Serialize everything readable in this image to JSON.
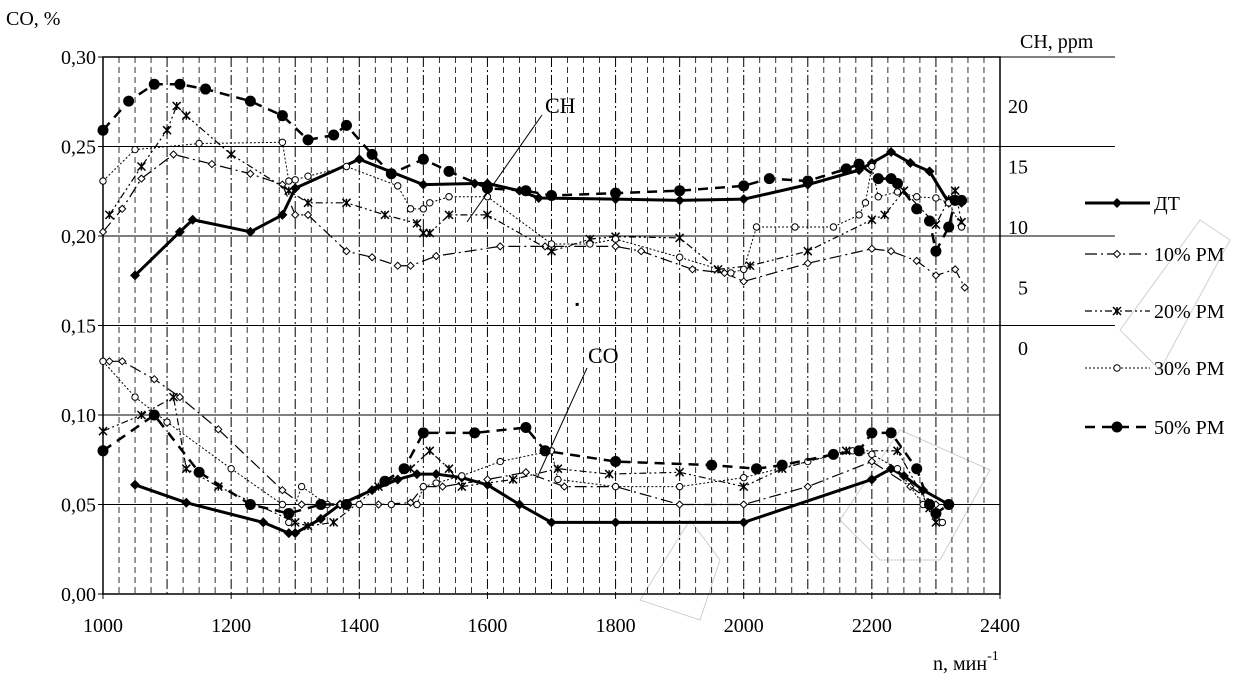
{
  "chart_data": {
    "type": "line",
    "y_label_left": "CO, %",
    "y_label_right": "CH, ppm",
    "x_label": "n, мин",
    "x_label_superscript": "-1",
    "xlim": [
      1000,
      2400
    ],
    "ylim_left": [
      0,
      0.3
    ],
    "ylim_right": [
      0,
      25
    ],
    "x_ticks": [
      "1000",
      "1200",
      "1400",
      "1600",
      "1800",
      "2000",
      "2200",
      "2400"
    ],
    "y_ticks_left": [
      "0,00",
      "0,05",
      "0,10",
      "0,15",
      "0,20",
      "0,25",
      "0,30"
    ],
    "y_ticks_right": [
      "0",
      "5",
      "10",
      "15",
      "20"
    ],
    "annotations": {
      "ch": "CH",
      "co": "CO"
    },
    "grid": "vertical lines every 25 rpm, horizontal lines at left-axis ticks",
    "legend_position": "right",
    "legend": [
      {
        "name": "ДТ",
        "style": "solid-thick",
        "marker": "diamond"
      },
      {
        "name": "10% РМ",
        "style": "long-dash-dot",
        "marker": "open-diamond"
      },
      {
        "name": "20% РМ",
        "style": "dash-dot-dot",
        "marker": "star"
      },
      {
        "name": "30% РМ",
        "style": "dotted-thin",
        "marker": "open-circle"
      },
      {
        "name": "50% РМ",
        "style": "heavy-dash",
        "marker": "filled-circle"
      }
    ],
    "series": [
      {
        "name": "ДТ",
        "measure": "CO",
        "axis": "left",
        "points": [
          [
            1050,
            0.061
          ],
          [
            1130,
            0.051
          ],
          [
            1250,
            0.04
          ],
          [
            1290,
            0.034
          ],
          [
            1300,
            0.034
          ],
          [
            1340,
            0.042
          ],
          [
            1370,
            0.05
          ],
          [
            1420,
            0.058
          ],
          [
            1460,
            0.064
          ],
          [
            1490,
            0.067
          ],
          [
            1520,
            0.067
          ],
          [
            1560,
            0.065
          ],
          [
            1600,
            0.061
          ],
          [
            1650,
            0.05
          ],
          [
            1700,
            0.04
          ],
          [
            1800,
            0.04
          ],
          [
            2000,
            0.04
          ],
          [
            2200,
            0.064
          ],
          [
            2230,
            0.07
          ],
          [
            2250,
            0.066
          ],
          [
            2280,
            0.058
          ],
          [
            2320,
            0.05
          ]
        ]
      },
      {
        "name": "ДТ",
        "measure": "CH",
        "axis": "right",
        "points": [
          [
            1050,
            6.0
          ],
          [
            1120,
            9.6
          ],
          [
            1140,
            10.6
          ],
          [
            1230,
            9.6
          ],
          [
            1280,
            11.0
          ],
          [
            1300,
            13.2
          ],
          [
            1400,
            15.6
          ],
          [
            1500,
            13.5
          ],
          [
            1580,
            13.6
          ],
          [
            1600,
            13.6
          ],
          [
            1650,
            13.0
          ],
          [
            1680,
            12.4
          ],
          [
            1800,
            12.3
          ],
          [
            1900,
            12.2
          ],
          [
            2000,
            12.3
          ],
          [
            2100,
            13.5
          ],
          [
            2180,
            14.7
          ],
          [
            2200,
            15.3
          ],
          [
            2230,
            16.2
          ],
          [
            2260,
            15.3
          ],
          [
            2290,
            14.6
          ],
          [
            2320,
            12.0
          ],
          [
            2340,
            12.0
          ]
        ]
      },
      {
        "name": "10% РМ",
        "measure": "CO",
        "axis": "left",
        "points": [
          [
            1010,
            0.13
          ],
          [
            1030,
            0.13
          ],
          [
            1080,
            0.12
          ],
          [
            1120,
            0.11
          ],
          [
            1180,
            0.092
          ],
          [
            1280,
            0.058
          ],
          [
            1310,
            0.05
          ],
          [
            1370,
            0.05
          ],
          [
            1430,
            0.05
          ],
          [
            1480,
            0.051
          ],
          [
            1500,
            0.06
          ],
          [
            1530,
            0.06
          ],
          [
            1600,
            0.064
          ],
          [
            1660,
            0.068
          ],
          [
            1720,
            0.06
          ],
          [
            1800,
            0.06
          ],
          [
            1900,
            0.05
          ],
          [
            2000,
            0.05
          ],
          [
            2100,
            0.06
          ],
          [
            2200,
            0.074
          ],
          [
            2260,
            0.06
          ],
          [
            2300,
            0.05
          ]
        ]
      },
      {
        "name": "10% РМ",
        "measure": "CH",
        "axis": "right",
        "points": [
          [
            1000,
            9.6
          ],
          [
            1030,
            11.5
          ],
          [
            1060,
            14.0
          ],
          [
            1110,
            16.0
          ],
          [
            1170,
            15.2
          ],
          [
            1230,
            14.4
          ],
          [
            1280,
            13.5
          ],
          [
            1300,
            11.0
          ],
          [
            1320,
            11.0
          ],
          [
            1380,
            8.0
          ],
          [
            1420,
            7.5
          ],
          [
            1460,
            6.8
          ],
          [
            1480,
            6.8
          ],
          [
            1520,
            7.6
          ],
          [
            1620,
            8.4
          ],
          [
            1690,
            8.4
          ],
          [
            1800,
            8.4
          ],
          [
            1840,
            8.0
          ],
          [
            1920,
            6.5
          ],
          [
            1970,
            6.2
          ],
          [
            2000,
            5.5
          ],
          [
            2100,
            7.0
          ],
          [
            2200,
            8.2
          ],
          [
            2230,
            8.0
          ],
          [
            2270,
            7.2
          ],
          [
            2300,
            6.0
          ],
          [
            2330,
            6.5
          ],
          [
            2345,
            5.0
          ]
        ]
      },
      {
        "name": "20% РМ",
        "measure": "CO",
        "axis": "left",
        "points": [
          [
            1000,
            0.091
          ],
          [
            1060,
            0.1
          ],
          [
            1110,
            0.11
          ],
          [
            1130,
            0.07
          ],
          [
            1180,
            0.06
          ],
          [
            1300,
            0.04
          ],
          [
            1320,
            0.038
          ],
          [
            1360,
            0.04
          ],
          [
            1430,
            0.06
          ],
          [
            1480,
            0.07
          ],
          [
            1510,
            0.08
          ],
          [
            1540,
            0.07
          ],
          [
            1560,
            0.06
          ],
          [
            1640,
            0.064
          ],
          [
            1710,
            0.07
          ],
          [
            1790,
            0.067
          ],
          [
            1900,
            0.068
          ],
          [
            2000,
            0.06
          ],
          [
            2060,
            0.07
          ],
          [
            2160,
            0.08
          ],
          [
            2240,
            0.08
          ],
          [
            2290,
            0.048
          ],
          [
            2300,
            0.04
          ]
        ]
      },
      {
        "name": "20% РМ",
        "measure": "CH",
        "axis": "right",
        "points": [
          [
            1010,
            11.0
          ],
          [
            1060,
            15.0
          ],
          [
            1100,
            18.0
          ],
          [
            1115,
            20.0
          ],
          [
            1130,
            19.2
          ],
          [
            1200,
            16.0
          ],
          [
            1290,
            13.0
          ],
          [
            1320,
            12.0
          ],
          [
            1380,
            12.0
          ],
          [
            1440,
            11.0
          ],
          [
            1490,
            10.3
          ],
          [
            1500,
            9.5
          ],
          [
            1510,
            9.5
          ],
          [
            1540,
            11.0
          ],
          [
            1600,
            11.0
          ],
          [
            1700,
            8.0
          ],
          [
            1760,
            9.0
          ],
          [
            1800,
            9.2
          ],
          [
            1900,
            9.1
          ],
          [
            1960,
            6.5
          ],
          [
            2010,
            6.8
          ],
          [
            2100,
            8.0
          ],
          [
            2200,
            10.6
          ],
          [
            2220,
            11.0
          ],
          [
            2250,
            13.0
          ],
          [
            2300,
            10.2
          ],
          [
            2320,
            12.3
          ],
          [
            2330,
            13.0
          ],
          [
            2340,
            10.4
          ]
        ]
      },
      {
        "name": "30% РМ",
        "measure": "CO",
        "axis": "left",
        "points": [
          [
            1000,
            0.13
          ],
          [
            1050,
            0.11
          ],
          [
            1100,
            0.096
          ],
          [
            1200,
            0.07
          ],
          [
            1280,
            0.05
          ],
          [
            1290,
            0.04
          ],
          [
            1310,
            0.06
          ],
          [
            1350,
            0.05
          ],
          [
            1400,
            0.05
          ],
          [
            1450,
            0.05
          ],
          [
            1490,
            0.05
          ],
          [
            1500,
            0.06
          ],
          [
            1520,
            0.062
          ],
          [
            1560,
            0.066
          ],
          [
            1620,
            0.074
          ],
          [
            1700,
            0.08
          ],
          [
            1710,
            0.064
          ],
          [
            1800,
            0.06
          ],
          [
            1900,
            0.06
          ],
          [
            2000,
            0.065
          ],
          [
            2100,
            0.074
          ],
          [
            2170,
            0.08
          ],
          [
            2200,
            0.078
          ],
          [
            2240,
            0.07
          ],
          [
            2280,
            0.05
          ],
          [
            2310,
            0.04
          ]
        ]
      },
      {
        "name": "30% РМ",
        "measure": "CH",
        "axis": "right",
        "points": [
          [
            1000,
            13.8
          ],
          [
            1050,
            16.4
          ],
          [
            1150,
            16.9
          ],
          [
            1280,
            17.0
          ],
          [
            1290,
            13.8
          ],
          [
            1300,
            13.9
          ],
          [
            1320,
            14.2
          ],
          [
            1380,
            15.0
          ],
          [
            1460,
            13.4
          ],
          [
            1480,
            11.5
          ],
          [
            1500,
            11.5
          ],
          [
            1510,
            12.0
          ],
          [
            1540,
            12.5
          ],
          [
            1600,
            12.5
          ],
          [
            1700,
            8.6
          ],
          [
            1760,
            8.6
          ],
          [
            1800,
            9.0
          ],
          [
            1900,
            7.5
          ],
          [
            1980,
            6.2
          ],
          [
            2000,
            6.5
          ],
          [
            2020,
            10.0
          ],
          [
            2080,
            10.0
          ],
          [
            2140,
            10.0
          ],
          [
            2180,
            11.0
          ],
          [
            2190,
            12.0
          ],
          [
            2200,
            15.0
          ],
          [
            2210,
            12.5
          ],
          [
            2240,
            12.9
          ],
          [
            2270,
            12.5
          ],
          [
            2300,
            12.4
          ],
          [
            2320,
            12.0
          ],
          [
            2340,
            10.0
          ]
        ]
      },
      {
        "name": "50% РМ",
        "measure": "CO",
        "axis": "left",
        "points": [
          [
            1000,
            0.08
          ],
          [
            1080,
            0.1
          ],
          [
            1150,
            0.068
          ],
          [
            1230,
            0.05
          ],
          [
            1290,
            0.045
          ],
          [
            1340,
            0.05
          ],
          [
            1380,
            0.05
          ],
          [
            1440,
            0.063
          ],
          [
            1470,
            0.07
          ],
          [
            1500,
            0.09
          ],
          [
            1580,
            0.09
          ],
          [
            1660,
            0.093
          ],
          [
            1690,
            0.08
          ],
          [
            1800,
            0.074
          ],
          [
            1950,
            0.072
          ],
          [
            2020,
            0.07
          ],
          [
            2060,
            0.072
          ],
          [
            2140,
            0.078
          ],
          [
            2180,
            0.08
          ],
          [
            2200,
            0.09
          ],
          [
            2230,
            0.09
          ],
          [
            2270,
            0.07
          ],
          [
            2290,
            0.05
          ],
          [
            2300,
            0.045
          ],
          [
            2320,
            0.05
          ]
        ]
      },
      {
        "name": "50% РМ",
        "measure": "CH",
        "axis": "right",
        "points": [
          [
            1000,
            18.0
          ],
          [
            1040,
            20.4
          ],
          [
            1080,
            21.8
          ],
          [
            1120,
            21.8
          ],
          [
            1160,
            21.4
          ],
          [
            1230,
            20.4
          ],
          [
            1280,
            19.2
          ],
          [
            1320,
            17.2
          ],
          [
            1360,
            17.6
          ],
          [
            1380,
            18.4
          ],
          [
            1420,
            16.0
          ],
          [
            1450,
            14.4
          ],
          [
            1500,
            15.6
          ],
          [
            1540,
            14.6
          ],
          [
            1600,
            13.2
          ],
          [
            1660,
            13.0
          ],
          [
            1700,
            12.6
          ],
          [
            1800,
            12.8
          ],
          [
            1900,
            13.0
          ],
          [
            2000,
            13.4
          ],
          [
            2040,
            14.0
          ],
          [
            2100,
            13.8
          ],
          [
            2160,
            14.8
          ],
          [
            2180,
            15.2
          ],
          [
            2210,
            14.0
          ],
          [
            2230,
            14.0
          ],
          [
            2240,
            13.6
          ],
          [
            2270,
            11.5
          ],
          [
            2290,
            10.5
          ],
          [
            2300,
            8.0
          ],
          [
            2320,
            10.0
          ],
          [
            2330,
            12.2
          ],
          [
            2340,
            12.2
          ]
        ]
      }
    ]
  }
}
